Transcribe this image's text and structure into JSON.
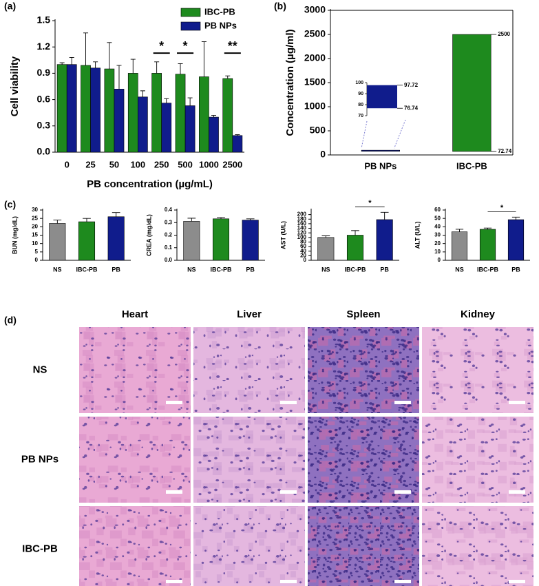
{
  "chart_data": [
    {
      "type": "bar",
      "panel": "(a)",
      "x_label": "PB concentration (µg/mL)",
      "y_label": "Cell viability",
      "categories": [
        "0",
        "25",
        "50",
        "100",
        "250",
        "500",
        "1000",
        "2500"
      ],
      "series": [
        {
          "name": "IBC-PB",
          "color": "#1e8a1e",
          "values": [
            1.0,
            0.99,
            0.95,
            0.9,
            0.9,
            0.89,
            0.86,
            0.84
          ],
          "errors": [
            0.02,
            0.37,
            0.3,
            0.16,
            0.13,
            0.12,
            0.4,
            0.03
          ]
        },
        {
          "name": "PB NPs",
          "color": "#101c8c",
          "values": [
            1.0,
            0.96,
            0.72,
            0.63,
            0.56,
            0.53,
            0.4,
            0.19
          ],
          "errors": [
            0.08,
            0.07,
            0.27,
            0.07,
            0.05,
            0.09,
            0.02,
            0.01
          ]
        }
      ],
      "ylim": [
        0,
        1.5
      ],
      "yticks": [
        {
          "value": 0,
          "label": "0.0"
        },
        0.3,
        0.6,
        0.9,
        1.2,
        1.5
      ],
      "annotations": [
        {
          "text": "*",
          "x": "250"
        },
        {
          "text": "*",
          "x": "500"
        },
        {
          "text": "**",
          "x": "2500"
        }
      ],
      "legend": "top-right"
    },
    {
      "type": "range",
      "panel": "(b)",
      "y_label": "Concentration (µg/ml)",
      "categories": [
        "PB NPs",
        "IBC-PB"
      ],
      "colors": [
        "#101c8c",
        "#1e8a1e"
      ],
      "lows": [
        76.74,
        72.74
      ],
      "highs": [
        97.72,
        2500
      ],
      "ylim": [
        0,
        3000
      ],
      "yticks": [
        0,
        500,
        1000,
        1500,
        2000,
        2500,
        3000
      ],
      "inset": {
        "ylim": [
          70,
          100
        ],
        "yticks": [
          70,
          80,
          90,
          100
        ]
      }
    },
    {
      "type": "bar",
      "panel": "(c)",
      "y_label": "BUN (mg/dL)",
      "categories": [
        "NS",
        "IBC-PB",
        "PB"
      ],
      "colors": [
        "#8c8c8c",
        "#1e8a1e",
        "#101c8c"
      ],
      "values": [
        22,
        23,
        26
      ],
      "errors": [
        2,
        2,
        2.5
      ],
      "ylim": [
        0,
        30
      ],
      "yticks": [
        0,
        5,
        10,
        15,
        20,
        25,
        30
      ]
    },
    {
      "type": "bar",
      "y_label": "CREA (mg/dL)",
      "categories": [
        "NS",
        "IBC-PB",
        "PB"
      ],
      "colors": [
        "#8c8c8c",
        "#1e8a1e",
        "#101c8c"
      ],
      "values": [
        0.31,
        0.33,
        0.32
      ],
      "errors": [
        0.025,
        0.01,
        0.01
      ],
      "ylim": [
        0,
        0.4
      ],
      "yticks": [
        {
          "value": 0,
          "label": "0.0"
        },
        0.1,
        0.2,
        0.3,
        0.4
      ]
    },
    {
      "type": "bar",
      "y_label": "AST (U/L)",
      "categories": [
        "NS",
        "IBC-PB",
        "PB"
      ],
      "colors": [
        "#8c8c8c",
        "#1e8a1e",
        "#101c8c"
      ],
      "values": [
        100,
        110,
        178
      ],
      "errors": [
        7,
        20,
        32
      ],
      "ylim": [
        0,
        220
      ],
      "yticks": [
        0,
        20,
        40,
        60,
        80,
        100,
        120,
        140,
        160,
        180,
        200
      ],
      "annotation": {
        "text": "*",
        "between": [
          "IBC-PB",
          "PB"
        ]
      }
    },
    {
      "type": "bar",
      "y_label": "ALT (U/L)",
      "categories": [
        "NS",
        "IBC-PB",
        "PB"
      ],
      "colors": [
        "#8c8c8c",
        "#1e8a1e",
        "#101c8c"
      ],
      "values": [
        34,
        37,
        48.5
      ],
      "errors": [
        3,
        1.5,
        3
      ],
      "ylim": [
        0,
        60
      ],
      "yticks": [
        0,
        10,
        20,
        30,
        40,
        50,
        60
      ],
      "annotation": {
        "text": "*",
        "between": [
          "IBC-PB",
          "PB"
        ]
      }
    }
  ],
  "histology": {
    "panel": "(d)",
    "columns": [
      "Heart",
      "Liver",
      "Spleen",
      "Kidney"
    ],
    "rows": [
      "NS",
      "PB NPs",
      "IBC-PB"
    ]
  }
}
